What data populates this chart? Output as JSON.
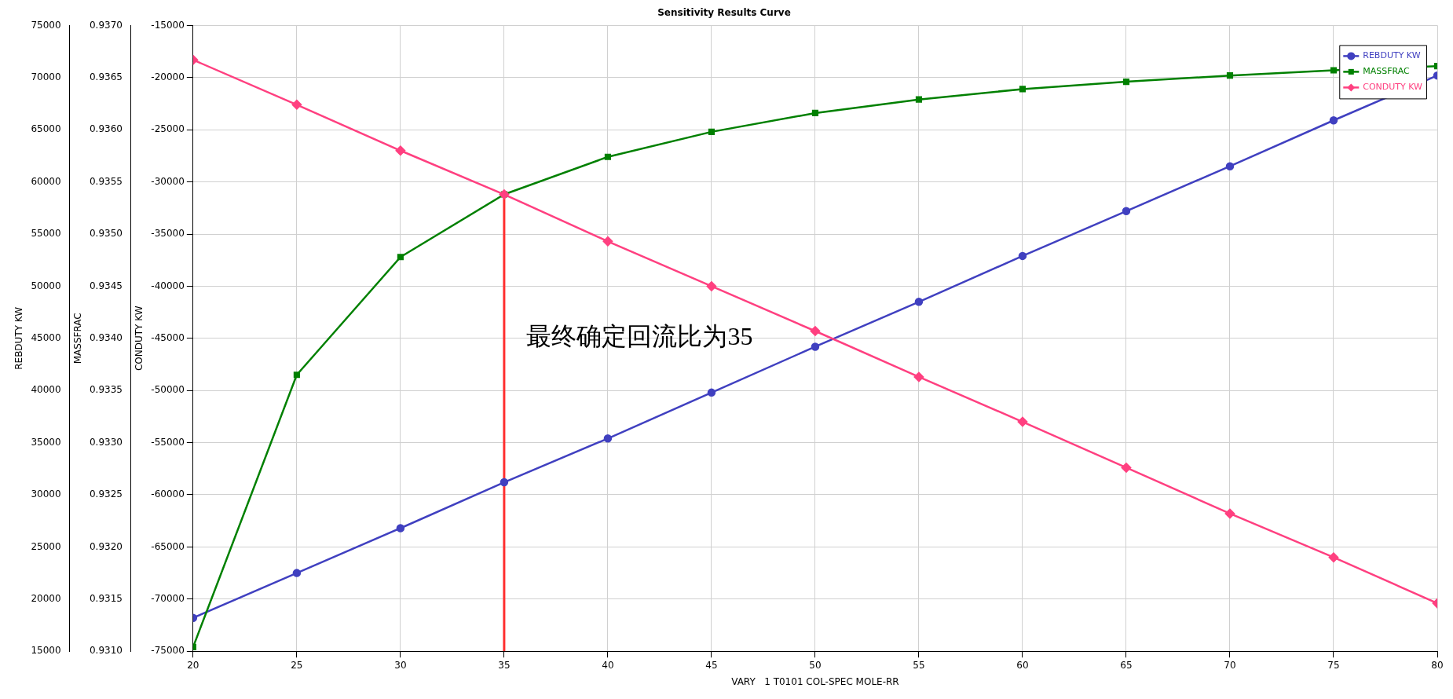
{
  "chart_data": {
    "type": "line",
    "title": "Sensitivity Results Curve",
    "xlabel": "VARY   1 T0101 COL-SPEC MOLE-RR",
    "ylabel": "REBDUTY KW",
    "y2label": "MASSFRAC",
    "y3label": "CONDUTY KW",
    "x": [
      20,
      25,
      30,
      35,
      40,
      45,
      50,
      55,
      60,
      65,
      70,
      75,
      80
    ],
    "xlim": [
      20,
      80
    ],
    "xticks": [
      20,
      25,
      30,
      35,
      40,
      45,
      50,
      55,
      60,
      65,
      70,
      75,
      80
    ],
    "ylim": [
      15000,
      75000
    ],
    "yticks": [
      15000,
      20000,
      25000,
      30000,
      35000,
      40000,
      45000,
      50000,
      55000,
      60000,
      65000,
      70000,
      75000
    ],
    "y2lim": [
      0.931,
      0.937
    ],
    "y2ticks": [
      {
        "value": 0.931,
        "label": "0.9310"
      },
      0.9315,
      {
        "value": 0.932,
        "label": "0.9320"
      },
      0.9325,
      {
        "value": 0.933,
        "label": "0.9330"
      },
      0.9335,
      {
        "value": 0.934,
        "label": "0.9340"
      },
      0.9345,
      {
        "value": 0.935,
        "label": "0.9350"
      },
      0.9355,
      {
        "value": 0.936,
        "label": "0.9360"
      },
      0.9365,
      {
        "value": 0.937,
        "label": "0.9370"
      }
    ],
    "y3lim": [
      -75000,
      -15000
    ],
    "y3ticks": [
      -75000,
      -70000,
      -65000,
      -60000,
      -55000,
      -50000,
      -45000,
      -40000,
      -35000,
      -30000,
      -25000,
      -20000,
      -15000
    ],
    "grid": true,
    "legend": "top right",
    "line_style": "solid",
    "annotations": [
      "最终确定回流比为35"
    ],
    "series": [
      {
        "name": "REBDUTY KW",
        "color": "#4040c0",
        "marker": "circle",
        "axis": "y",
        "values": [
          18200,
          22500,
          26800,
          31200,
          35400,
          39800,
          44200,
          48500,
          52900,
          57200,
          61500,
          65900,
          70200
        ]
      },
      {
        "name": "MASSFRAC",
        "color": "#008000",
        "marker": "square",
        "axis": "y2",
        "values": [
          0.93104,
          0.93365,
          0.93478,
          0.93538,
          0.93574,
          0.93598,
          0.93616,
          0.93629,
          0.93639,
          0.93646,
          0.93652,
          0.93657,
          0.93661
        ]
      },
      {
        "name": "CONDUTY KW",
        "color": "#ff4080",
        "marker": "diamond",
        "axis": "y3",
        "values": [
          -18300,
          -22600,
          -27000,
          -31200,
          -35700,
          -40000,
          -44300,
          -48700,
          -53000,
          -57400,
          -61800,
          -66000,
          -70400
        ]
      },
      {
        "color": "#ff3030",
        "marker": "none",
        "axis": "y",
        "x": [
          35,
          35
        ],
        "values": [
          15000,
          58800
        ]
      }
    ]
  }
}
